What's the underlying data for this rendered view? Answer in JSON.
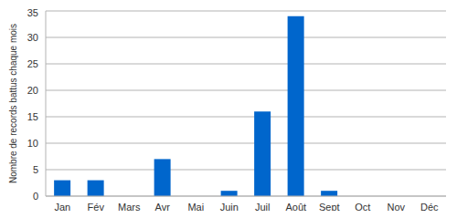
{
  "chart_data": {
    "type": "bar",
    "y_label": "Nombre de records battus chaque mois",
    "categories": [
      "Jan",
      "Fév",
      "Mars",
      "Avr",
      "Mai",
      "Juin",
      "Juil",
      "Août",
      "Sept",
      "Oct",
      "Nov",
      "Déc"
    ],
    "values": [
      3,
      3,
      0,
      7,
      0,
      1,
      16,
      34,
      1,
      0,
      0,
      0
    ],
    "color": "#0066cc",
    "ylim": [
      0,
      35
    ],
    "yticks": [
      0,
      5,
      10,
      15,
      20,
      25,
      30,
      35
    ],
    "grid": true
  }
}
